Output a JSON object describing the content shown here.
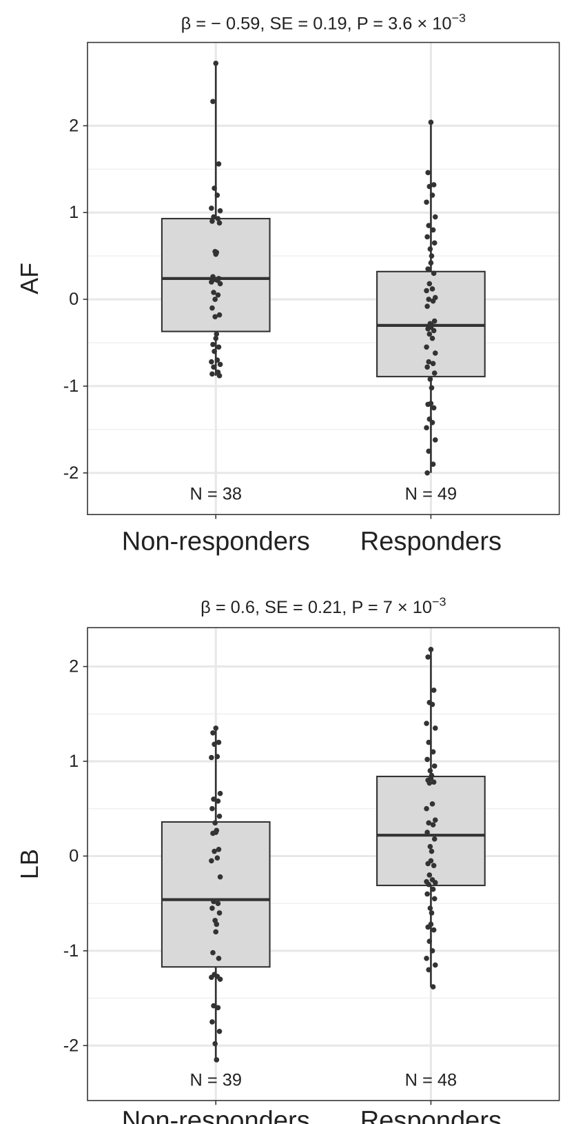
{
  "chart_data": [
    {
      "type": "box",
      "title": "β = − 0.59,  SE = 0.19, P = 3.6 × 10",
      "title_exponent": "−3",
      "ylabel": "AF",
      "categories": [
        "Non-responders",
        "Responders"
      ],
      "ylim": [
        -2.48,
        2.96
      ],
      "yticks": [
        -2,
        -1,
        0,
        1,
        2
      ],
      "grid": true,
      "box_color": "#d9d9d9",
      "point_color": "#333333",
      "boxes": [
        {
          "q1": -0.37,
          "median": 0.24,
          "q3": 0.93,
          "whisker_low": -0.88,
          "whisker_high": 2.73,
          "n_label": "N = 38",
          "points": [
            2.72,
            2.28,
            1.56,
            1.28,
            1.2,
            1.05,
            1.02,
            0.95,
            0.93,
            0.9,
            0.88,
            0.55,
            0.54,
            0.52,
            0.26,
            0.24,
            0.23,
            0.22,
            0.2,
            0.18,
            0.08,
            0.05,
            -0.1,
            -0.18,
            -0.2,
            -0.4,
            -0.45,
            -0.52,
            -0.55,
            -0.6,
            -0.7,
            -0.72,
            -0.75,
            -0.78,
            -0.84,
            -0.86,
            -0.88,
            0.0
          ]
        },
        {
          "q1": -0.89,
          "median": -0.3,
          "q3": 0.32,
          "whisker_low": -2.0,
          "whisker_high": 2.04,
          "n_label": "N = 49",
          "points": [
            2.04,
            1.46,
            1.32,
            1.3,
            1.2,
            1.12,
            0.95,
            0.85,
            0.8,
            0.72,
            0.65,
            0.58,
            0.5,
            0.42,
            0.35,
            0.3,
            0.18,
            0.12,
            0.1,
            0.02,
            0.0,
            -0.02,
            -0.08,
            -0.25,
            -0.28,
            -0.3,
            -0.32,
            -0.34,
            -0.36,
            -0.4,
            -0.45,
            -0.55,
            -0.62,
            -0.72,
            -0.74,
            -0.78,
            -0.85,
            -0.92,
            -1.02,
            -1.2,
            -1.21,
            -1.25,
            -1.38,
            -1.42,
            -1.48,
            -1.62,
            -1.75,
            -1.9,
            -2.0
          ]
        }
      ]
    },
    {
      "type": "box",
      "title": "β = 0.6,  SE = 0.21, P = 7 × 10",
      "title_exponent": "−3",
      "ylabel": "LB",
      "categories": [
        "Non-responders",
        "Responders"
      ],
      "ylim": [
        -2.58,
        2.41
      ],
      "yticks": [
        -2,
        -1,
        0,
        1,
        2
      ],
      "grid": true,
      "box_color": "#d9d9d9",
      "point_color": "#333333",
      "boxes": [
        {
          "q1": -1.17,
          "median": -0.46,
          "q3": 0.36,
          "whisker_low": -2.15,
          "whisker_high": 1.35,
          "n_label": "N = 39",
          "points": [
            1.35,
            1.3,
            1.2,
            1.18,
            1.05,
            1.04,
            0.66,
            0.6,
            0.58,
            0.5,
            0.42,
            0.35,
            0.27,
            0.25,
            0.24,
            0.07,
            0.05,
            -0.02,
            -0.05,
            -0.22,
            -0.48,
            -0.5,
            -0.55,
            -0.6,
            -0.68,
            -0.72,
            -0.8,
            -1.02,
            -1.08,
            -1.25,
            -1.27,
            -1.28,
            -1.3,
            -1.58,
            -1.6,
            -1.75,
            -1.85,
            -1.98,
            -2.15
          ]
        },
        {
          "q1": -0.31,
          "median": 0.22,
          "q3": 0.84,
          "whisker_low": -1.38,
          "whisker_high": 2.18,
          "n_label": "N = 48",
          "points": [
            2.18,
            2.1,
            1.75,
            1.62,
            1.6,
            1.4,
            1.35,
            1.2,
            1.1,
            1.02,
            0.95,
            0.9,
            0.85,
            0.82,
            0.8,
            0.78,
            0.77,
            0.55,
            0.5,
            0.38,
            0.35,
            0.33,
            0.25,
            0.18,
            0.1,
            0.05,
            -0.05,
            -0.08,
            -0.1,
            -0.2,
            -0.25,
            -0.27,
            -0.28,
            -0.3,
            -0.35,
            -0.4,
            -0.45,
            -0.55,
            -0.6,
            -0.72,
            -0.75,
            -0.78,
            -0.9,
            -1.0,
            -1.08,
            -1.15,
            -1.2,
            -1.38
          ]
        }
      ]
    }
  ]
}
